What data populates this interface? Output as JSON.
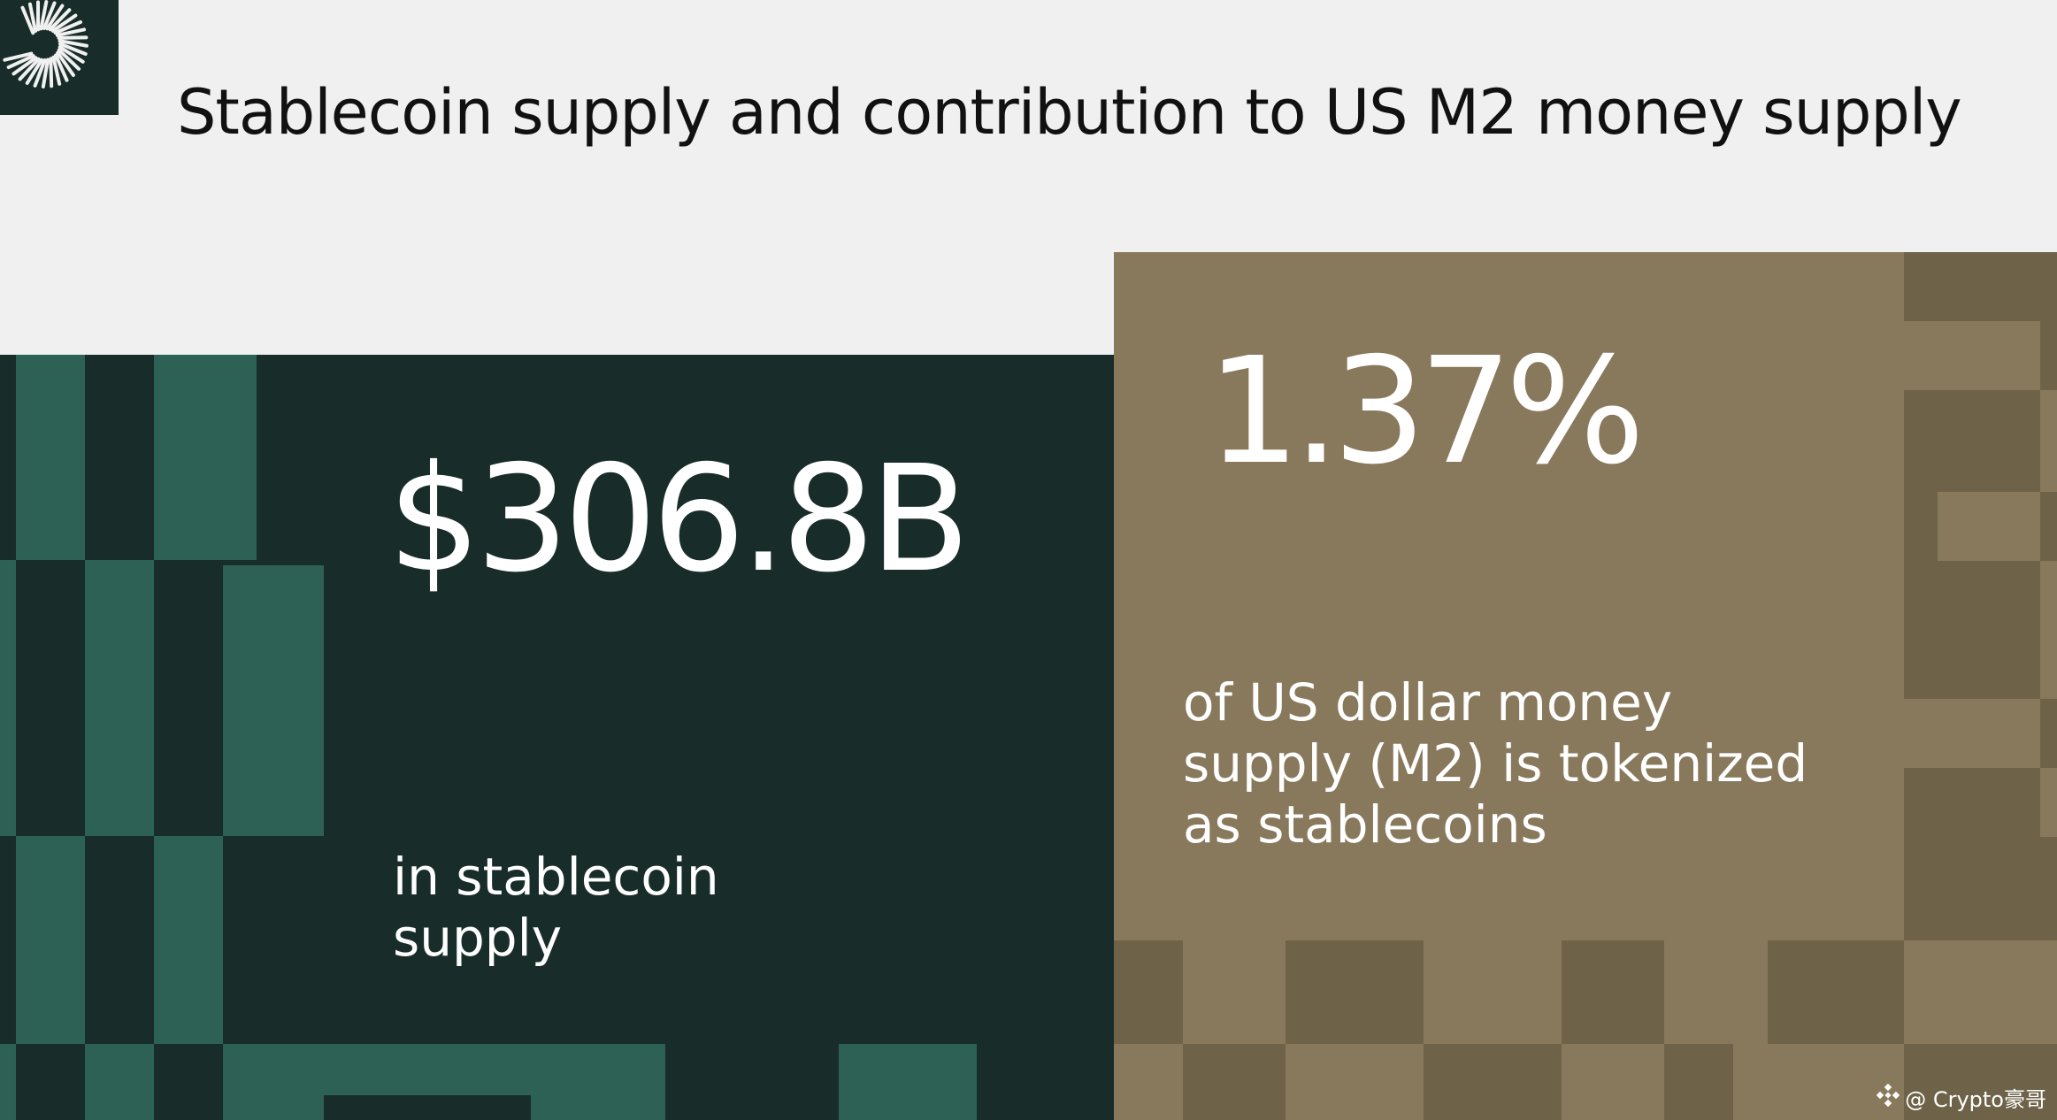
{
  "header": {
    "title": "Stablecoin supply and contribution to US M2 money supply",
    "logo_icon": "radial-burst-logo"
  },
  "stat_supply": {
    "value": "$306.8B",
    "description": "in stablecoin\nsupply"
  },
  "stat_share": {
    "value": "1.37%",
    "description": "of US dollar money\nsupply (M2) is tokenized\nas stablecoins"
  },
  "watermark": {
    "icon": "binance-diamond-icon",
    "text": "@ Crypto豪哥"
  },
  "colors": {
    "background": "#f0f0f0",
    "dark_green": "#182d29",
    "teal_green": "#2d6156",
    "tan": "#89795c",
    "dark_tan": "#6e6349",
    "text_dark": "#111111",
    "text_light": "#ffffff"
  }
}
